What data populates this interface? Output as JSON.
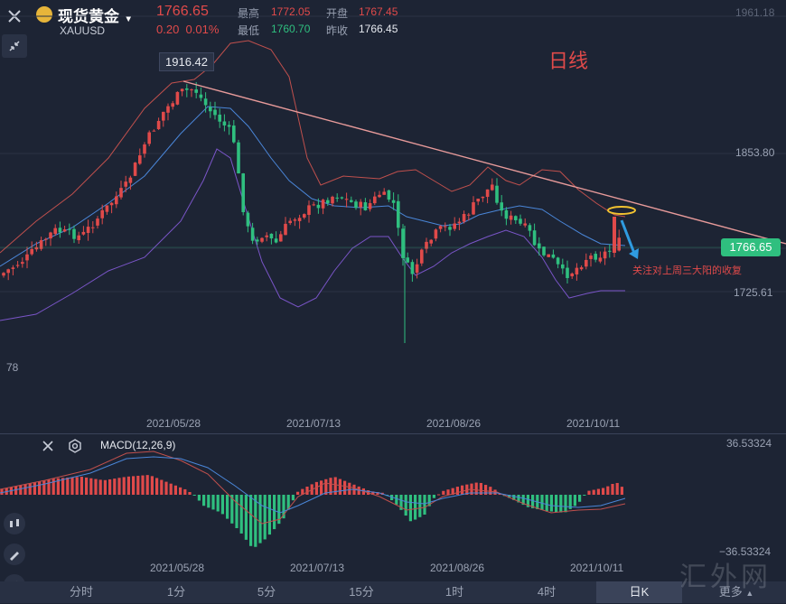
{
  "header": {
    "title": "现货黄金",
    "symbol": "XAUUSD",
    "price": "1766.65",
    "change": "0.20",
    "change_pct": "0.01%",
    "high_label": "最高",
    "high": "1772.05",
    "open_label": "开盘",
    "open": "1767.45",
    "low_label": "最低",
    "low": "1760.70",
    "prev_label": "昨收",
    "prev": "1766.45"
  },
  "annotations": {
    "period_label": "日线",
    "peak_label": "1916.42",
    "note": "关注对上周三大阳的收复",
    "current_price_tag": "1766.65"
  },
  "axis": {
    "price_top": "1961.18",
    "price_mid": "1853.80",
    "price_low": "1725.61",
    "left_clip": "78",
    "dates": [
      "2021/05/28",
      "2021/07/13",
      "2021/08/26",
      "2021/10/11"
    ]
  },
  "macd": {
    "label": "MACD(12,26,9)",
    "top": "36.53324",
    "bottom": "−36.53324"
  },
  "tabs": [
    "分时",
    "1分",
    "5分",
    "15分",
    "1时",
    "4时",
    "日K",
    "更多"
  ],
  "active_tab": "日K",
  "watermark": "汇外网",
  "colors": {
    "up": "#e04a4a",
    "down": "#2fbf7f",
    "background": "#1d2434",
    "trendline": "#e79a9a",
    "boll_upper": "#c0504d",
    "boll_mid": "#4a86d8",
    "boll_lower": "#7a55c8",
    "price_tag": "#2fbf7f"
  },
  "chart_data": {
    "type": "candlestick",
    "y_axis_labels": [
      "1961.18",
      "1853.80",
      "1766.65",
      "1725.61"
    ],
    "x_tick_labels": [
      "2021/05/28",
      "2021/07/13",
      "2021/08/26",
      "2021/10/11"
    ],
    "last_close": 1766.65,
    "peak": 1916.42
  }
}
